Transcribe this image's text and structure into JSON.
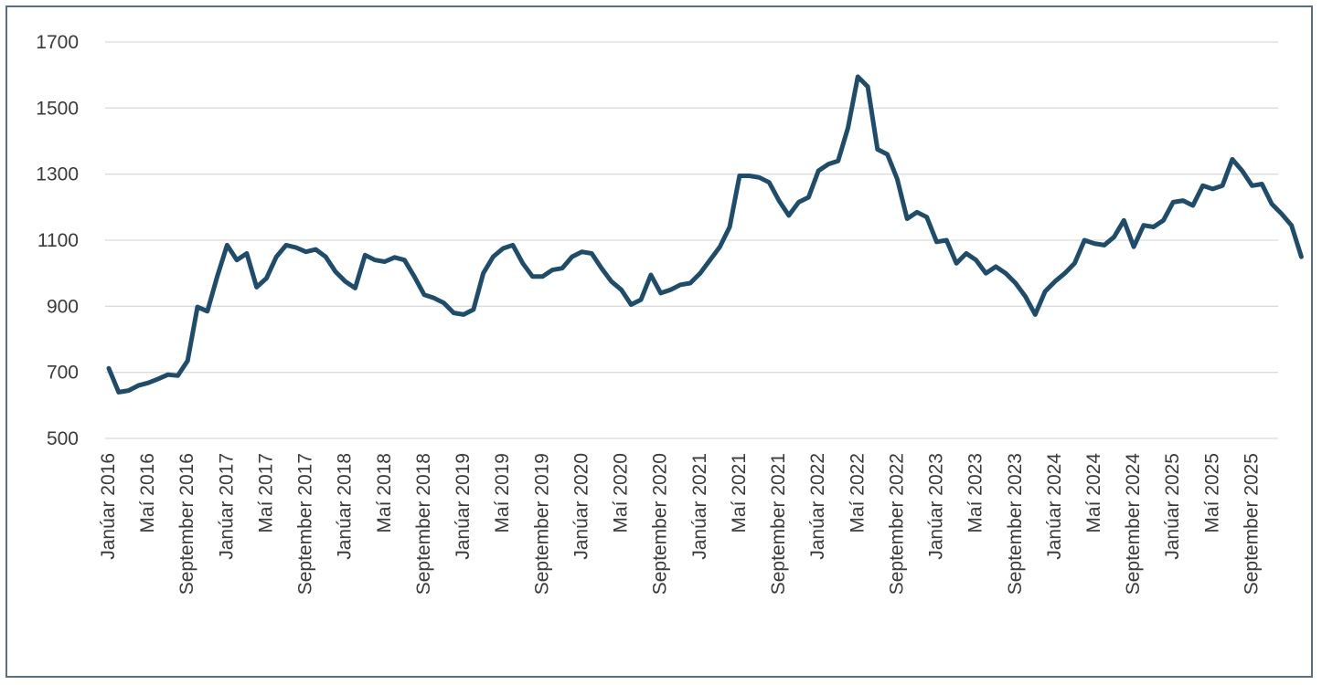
{
  "chart_data": {
    "type": "line",
    "title": "",
    "xlabel": "",
    "ylabel": "",
    "ylim": [
      500,
      1700
    ],
    "yticks": [
      500,
      700,
      900,
      1100,
      1300,
      1500,
      1700
    ],
    "grid": true,
    "legend": "none",
    "line_color": "#1e4d6b",
    "x_tick_labels": [
      "Janúar 2016",
      "Maí 2016",
      "September 2016",
      "Janúar 2017",
      "Maí 2017",
      "September 2017",
      "Janúar 2018",
      "Maí 2018",
      "September 2018",
      "Janúar 2019",
      "Maí 2019",
      "September 2019",
      "Janúar 2020",
      "Maí 2020",
      "September 2020",
      "Janúar 2021",
      "Maí 2021",
      "September 2021",
      "Janúar 2022",
      "Maí 2022",
      "September 2022",
      "Janúar 2023",
      "Maí 2023",
      "September 2023",
      "Janúar 2024",
      "Maí 2024",
      "September 2024",
      "Janúar 2025",
      "Maí 2025",
      "September 2025"
    ],
    "series": [
      {
        "start": "Janúar 2016",
        "frequency": "monthly",
        "values": [
          712,
          640,
          645,
          660,
          668,
          680,
          693,
          690,
          735,
          898,
          885,
          990,
          1085,
          1040,
          1060,
          958,
          985,
          1050,
          1085,
          1078,
          1065,
          1072,
          1050,
          1005,
          975,
          955,
          1055,
          1040,
          1035,
          1048,
          1040,
          990,
          935,
          925,
          910,
          880,
          875,
          890,
          1000,
          1050,
          1075,
          1085,
          1030,
          990,
          990,
          1010,
          1015,
          1050,
          1065,
          1060,
          1015,
          975,
          950,
          905,
          920,
          995,
          940,
          950,
          965,
          970,
          1000,
          1040,
          1080,
          1140,
          1295,
          1295,
          1290,
          1275,
          1220,
          1175,
          1215,
          1230,
          1310,
          1330,
          1340,
          1440,
          1595,
          1565,
          1375,
          1360,
          1285,
          1165,
          1185,
          1170,
          1095,
          1100,
          1030,
          1060,
          1040,
          1000,
          1020,
          1000,
          970,
          930,
          875,
          945,
          975,
          1000,
          1030,
          1100,
          1090,
          1085,
          1110,
          1160,
          1080,
          1145,
          1140,
          1160,
          1215,
          1220,
          1205,
          1265,
          1255,
          1265,
          1345,
          1310,
          1265,
          1270,
          1210,
          1180,
          1145,
          1050
        ]
      }
    ]
  }
}
